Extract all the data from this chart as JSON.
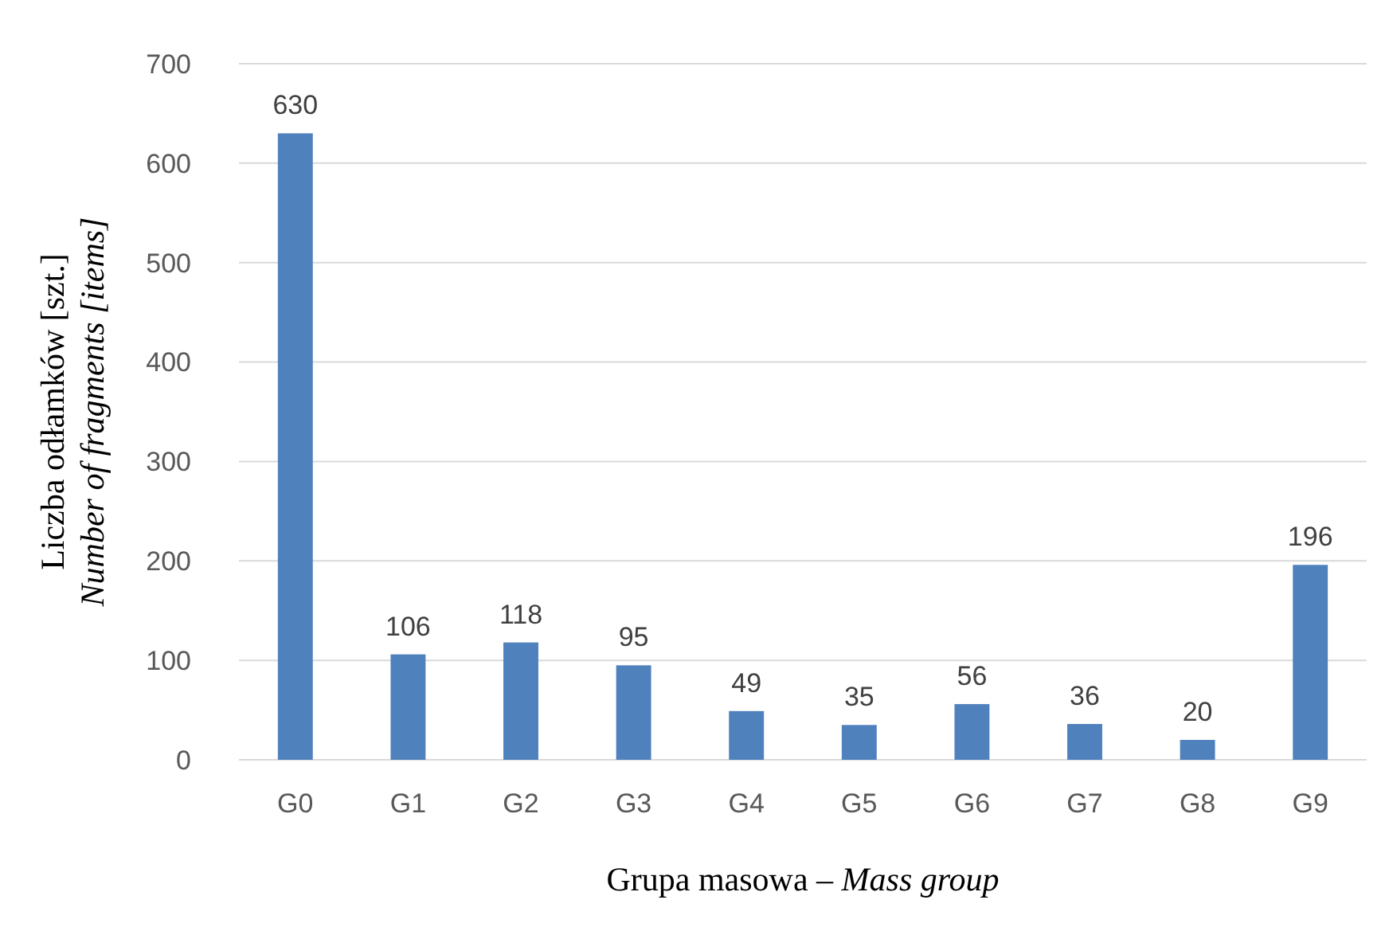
{
  "chart_data": {
    "type": "bar",
    "xlabel": "Grupa masowa – Mass group",
    "ylabel": "Liczba odłamków [szt.]\nNumber of fragments [items]",
    "categories": [
      "G0",
      "G1",
      "G2",
      "G3",
      "G4",
      "G5",
      "G6",
      "G7",
      "G8",
      "G9"
    ],
    "values": [
      630,
      106,
      118,
      95,
      49,
      35,
      56,
      36,
      20,
      196
    ],
    "color": "#4f81bd",
    "ylim": [
      0,
      700
    ],
    "yticks": [
      0,
      100,
      200,
      300,
      400,
      500,
      600,
      700
    ],
    "grid": "y",
    "data_labels": true
  }
}
